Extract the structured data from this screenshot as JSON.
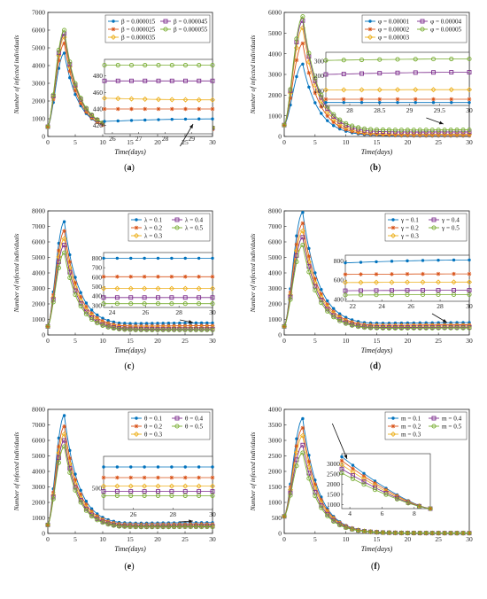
{
  "ylabel": "Number of infected individuals",
  "xlabel": "Time(days)",
  "colors": {
    "blue": "#0072BD",
    "orange": "#D95319",
    "yellow": "#EDB120",
    "purple": "#7E2F8E",
    "green": "#77AC30"
  },
  "chart_data": [
    {
      "type": "line",
      "panel_label": "a",
      "x_ticks": [
        0,
        5,
        10,
        15,
        20,
        25,
        30
      ],
      "y_ticks": [
        0,
        1000,
        2000,
        3000,
        4000,
        5000,
        6000,
        7000
      ],
      "ylim": [
        0,
        7000
      ],
      "xlim": [
        0,
        30
      ],
      "legend": {
        "cols": 2
      },
      "series": [
        {
          "name": "β = 0.000015",
          "color": "blue",
          "marker": "dot",
          "peak": 4700,
          "tail": 450
        },
        {
          "name": "β = 0.000025",
          "color": "orange",
          "marker": "star",
          "peak": 5250,
          "tail": 400
        },
        {
          "name": "β = 0.000035",
          "color": "yellow",
          "marker": "diamond",
          "peak": 5600,
          "tail": 470
        },
        {
          "name": "β = 0.000045",
          "color": "purple",
          "marker": "square",
          "peak": 5800,
          "tail": 480
        },
        {
          "name": "β = 0.000055",
          "color": "green",
          "marker": "circle",
          "peak": 6000,
          "tail": 495
        }
      ],
      "inset": {
        "x_ticks": [
          "26",
          "27",
          "28",
          "29"
        ],
        "x_range": [
          25.7,
          29.8
        ],
        "y_ticks": [
          "420",
          "440",
          "460",
          "480"
        ],
        "y_range": [
          410,
          500
        ],
        "values": [
          [
            425,
            428
          ],
          [
            440,
            440
          ],
          [
            453,
            451
          ],
          [
            474,
            474
          ],
          [
            493,
            493
          ]
        ]
      }
    },
    {
      "type": "line",
      "panel_label": "b",
      "x_ticks": [
        0,
        5,
        10,
        15,
        20,
        25,
        30
      ],
      "y_ticks": [
        0,
        1000,
        2000,
        3000,
        4000,
        5000,
        6000
      ],
      "ylim": [
        0,
        6000
      ],
      "xlim": [
        0,
        30
      ],
      "legend": {
        "cols": 2
      },
      "series": [
        {
          "name": "φ = 0.00001",
          "color": "blue",
          "marker": "dot",
          "peak": 3500,
          "tail": 20
        },
        {
          "name": "φ = 0.00002",
          "color": "orange",
          "marker": "star",
          "peak": 4500,
          "tail": 45
        },
        {
          "name": "φ = 0.00003",
          "color": "yellow",
          "marker": "diamond",
          "peak": 5250,
          "tail": 110
        },
        {
          "name": "φ = 0.00004",
          "color": "purple",
          "marker": "square",
          "peak": 5600,
          "tail": 220
        },
        {
          "name": "φ = 0.00005",
          "color": "green",
          "marker": "circle",
          "peak": 5800,
          "tail": 320
        }
      ],
      "inset": {
        "x_ticks": [
          "28",
          "28.5",
          "29",
          "29.5",
          "30"
        ],
        "x_range": [
          27.6,
          30
        ],
        "y_ticks": [
          "0",
          "100",
          "200",
          "300"
        ],
        "y_range": [
          0,
          360
        ],
        "values": [
          [
            20,
            20
          ],
          [
            42,
            42
          ],
          [
            105,
            107
          ],
          [
            210,
            225
          ],
          [
            305,
            315
          ]
        ]
      }
    },
    {
      "type": "line",
      "panel_label": "c",
      "x_ticks": [
        0,
        5,
        10,
        15,
        20,
        25,
        30
      ],
      "y_ticks": [
        0,
        1000,
        2000,
        3000,
        4000,
        5000,
        6000,
        7000,
        8000
      ],
      "ylim": [
        0,
        8000
      ],
      "xlim": [
        0,
        30
      ],
      "legend": {
        "cols": 2
      },
      "series": [
        {
          "name": "λ = 0.1",
          "color": "blue",
          "marker": "dot",
          "peak": 7300,
          "tail": 780
        },
        {
          "name": "λ = 0.2",
          "color": "orange",
          "marker": "star",
          "peak": 6700,
          "tail": 600
        },
        {
          "name": "λ = 0.3",
          "color": "yellow",
          "marker": "diamond",
          "peak": 6200,
          "tail": 480
        },
        {
          "name": "λ = 0.4",
          "color": "purple",
          "marker": "square",
          "peak": 5800,
          "tail": 390
        },
        {
          "name": "λ = 0.5",
          "color": "green",
          "marker": "circle",
          "peak": 5300,
          "tail": 330
        }
      ],
      "inset": {
        "x_ticks": [
          "24",
          "26",
          "28",
          "30"
        ],
        "x_range": [
          23.5,
          30
        ],
        "y_ticks": [
          "300",
          "400",
          "500",
          "600",
          "700",
          "800"
        ],
        "y_range": [
          280,
          860
        ],
        "values": [
          [
            800,
            800
          ],
          [
            605,
            605
          ],
          [
            480,
            480
          ],
          [
            385,
            385
          ],
          [
            320,
            320
          ]
        ]
      }
    },
    {
      "type": "line",
      "panel_label": "d",
      "x_ticks": [
        0,
        5,
        10,
        15,
        20,
        25,
        30
      ],
      "y_ticks": [
        0,
        1000,
        2000,
        3000,
        4000,
        5000,
        6000,
        7000,
        8000
      ],
      "ylim": [
        0,
        8000
      ],
      "xlim": [
        0,
        30
      ],
      "legend": {
        "cols": 2
      },
      "series": [
        {
          "name": "γ = 0.1",
          "color": "blue",
          "marker": "dot",
          "peak": 7900,
          "tail": 800
        },
        {
          "name": "γ = 0.2",
          "color": "orange",
          "marker": "star",
          "peak": 7200,
          "tail": 660
        },
        {
          "name": "γ = 0.3",
          "color": "yellow",
          "marker": "diamond",
          "peak": 6700,
          "tail": 580
        },
        {
          "name": "γ = 0.4",
          "color": "purple",
          "marker": "square",
          "peak": 6300,
          "tail": 500
        },
        {
          "name": "γ = 0.5",
          "color": "green",
          "marker": "circle",
          "peak": 5800,
          "tail": 450
        }
      ],
      "inset": {
        "x_ticks": [
          "22",
          "24",
          "26",
          "28",
          "30"
        ],
        "x_range": [
          21.5,
          30
        ],
        "y_ticks": [
          "400",
          "600",
          "800"
        ],
        "y_range": [
          380,
          860
        ],
        "values": [
          [
            780,
            810
          ],
          [
            660,
            665
          ],
          [
            575,
            580
          ],
          [
            490,
            495
          ],
          [
            445,
            450
          ]
        ]
      }
    },
    {
      "type": "line",
      "panel_label": "e",
      "x_ticks": [
        0,
        5,
        10,
        15,
        20,
        25,
        30
      ],
      "y_ticks": [
        0,
        1000,
        2000,
        3000,
        4000,
        5000,
        6000,
        7000,
        8000
      ],
      "ylim": [
        0,
        8000
      ],
      "xlim": [
        0,
        30
      ],
      "legend": {
        "cols": 2
      },
      "series": [
        {
          "name": "θ = 0.1",
          "color": "blue",
          "marker": "dot",
          "peak": 7600,
          "tail": 700
        },
        {
          "name": "θ = 0.2",
          "color": "orange",
          "marker": "star",
          "peak": 6900,
          "tail": 600
        },
        {
          "name": "θ = 0.3",
          "color": "yellow",
          "marker": "diamond",
          "peak": 6400,
          "tail": 520
        },
        {
          "name": "θ = 0.4",
          "color": "purple",
          "marker": "square",
          "peak": 6000,
          "tail": 470
        },
        {
          "name": "θ = 0.5",
          "color": "green",
          "marker": "circle",
          "peak": 5600,
          "tail": 430
        }
      ],
      "inset": {
        "x_ticks": [
          "26",
          "28",
          "30"
        ],
        "x_range": [
          24.5,
          30
        ],
        "y_ticks": [
          "500"
        ],
        "y_range": [
          300,
          800
        ],
        "values": [
          [
            700,
            700
          ],
          [
            600,
            600
          ],
          [
            520,
            520
          ],
          [
            470,
            470
          ],
          [
            430,
            430
          ]
        ]
      }
    },
    {
      "type": "line",
      "panel_label": "f",
      "x_ticks": [
        0,
        5,
        10,
        15,
        20,
        25,
        30
      ],
      "y_ticks": [
        0,
        500,
        1000,
        1500,
        2000,
        2500,
        3000,
        3500,
        4000
      ],
      "ylim": [
        0,
        4000
      ],
      "xlim": [
        0,
        30
      ],
      "legend": {
        "cols": 2
      },
      "series": [
        {
          "name": "m = 0.1",
          "color": "blue",
          "marker": "dot",
          "peak": 3700,
          "tail": 10
        },
        {
          "name": "m = 0.2",
          "color": "orange",
          "marker": "star",
          "peak": 3400,
          "tail": 10
        },
        {
          "name": "m = 0.3",
          "color": "yellow",
          "marker": "diamond",
          "peak": 3150,
          "tail": 10
        },
        {
          "name": "m = 0.4",
          "color": "purple",
          "marker": "square",
          "peak": 2850,
          "tail": 10
        },
        {
          "name": "m = 0.5",
          "color": "green",
          "marker": "circle",
          "peak": 2600,
          "tail": 10
        }
      ],
      "inset": {
        "x_ticks": [
          "4",
          "6",
          "8"
        ],
        "x_range": [
          3.5,
          9
        ],
        "y_ticks": [
          "1000",
          "1500",
          "2000",
          "2500",
          "3000"
        ],
        "y_range": [
          800,
          3500
        ],
        "curve": "decay",
        "values": [
          [
            3350,
            800
          ],
          [
            3150,
            800
          ],
          [
            2950,
            800
          ],
          [
            2750,
            800
          ],
          [
            2550,
            800
          ]
        ]
      }
    }
  ]
}
